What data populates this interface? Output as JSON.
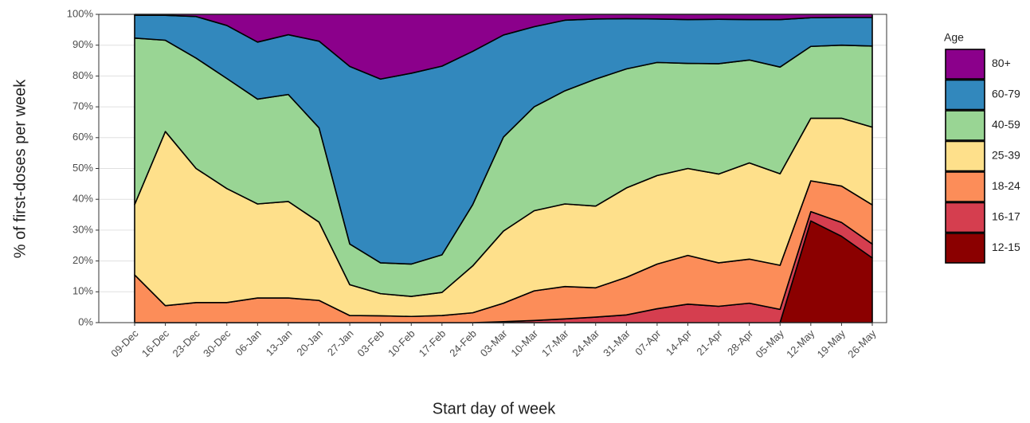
{
  "chart_data": {
    "type": "stacked_area",
    "x_label": "Start day of week",
    "y_label": "% of first-doses per week",
    "legend_title": "Age",
    "categories": [
      "09-Dec",
      "16-Dec",
      "23-Dec",
      "30-Dec",
      "06-Jan",
      "13-Jan",
      "20-Jan",
      "27-Jan",
      "03-Feb",
      "10-Feb",
      "17-Feb",
      "24-Feb",
      "03-Mar",
      "10-Mar",
      "17-Mar",
      "24-Mar",
      "31-Mar",
      "07-Apr",
      "14-Apr",
      "21-Apr",
      "28-Apr",
      "05-May",
      "12-May",
      "19-May",
      "26-May"
    ],
    "ylim": [
      0,
      100
    ],
    "yticks": [
      {
        "value": 0,
        "label": "0%"
      },
      {
        "value": 10,
        "label": "10%"
      },
      {
        "value": 20,
        "label": "20%"
      },
      {
        "value": 30,
        "label": "30%"
      },
      {
        "value": 40,
        "label": "40%"
      },
      {
        "value": 50,
        "label": "50%"
      },
      {
        "value": 60,
        "label": "60%"
      },
      {
        "value": 70,
        "label": "70%"
      },
      {
        "value": 80,
        "label": "80%"
      },
      {
        "value": 90,
        "label": "90%"
      },
      {
        "value": 100,
        "label": "100%"
      }
    ],
    "grid": true,
    "series": [
      {
        "name": "80+",
        "color": "#8b008b",
        "values": [
          0.3,
          0.3,
          0.7,
          3.6,
          9,
          6.6,
          8.7,
          16.9,
          21,
          19.1,
          16.8,
          12,
          6.7,
          4,
          1.9,
          1.5,
          1.4,
          1.5,
          1.7,
          1.6,
          1.7,
          1.7,
          1.1,
          1,
          1
        ]
      },
      {
        "name": "60-79",
        "color": "#3288bd",
        "values": [
          7.4,
          8.1,
          13.5,
          17.2,
          18.5,
          19.4,
          28.1,
          57.6,
          59.6,
          61.9,
          61.2,
          49.7,
          33.1,
          26,
          22.9,
          19.5,
          16.3,
          14.1,
          14.2,
          14.4,
          13.1,
          15.4,
          9.3,
          9,
          9.3
        ]
      },
      {
        "name": "40-59",
        "color": "#99d594",
        "values": [
          54,
          29.6,
          35.8,
          35.7,
          34,
          34.7,
          30.6,
          13.2,
          10,
          10.5,
          12.2,
          19.9,
          30.5,
          33.7,
          36.7,
          41.2,
          38.6,
          36.7,
          34.1,
          35.8,
          33.4,
          34.6,
          23.3,
          23.7,
          26.3
        ]
      },
      {
        "name": "25-39",
        "color": "#fee08b",
        "values": [
          22.8,
          56.5,
          43.5,
          37,
          30.5,
          31.3,
          25.4,
          10,
          7.2,
          6.5,
          7.5,
          15.2,
          23.4,
          26,
          26.8,
          26.5,
          29,
          28.7,
          28.2,
          28.8,
          31.2,
          29.7,
          20.3,
          22,
          25.2
        ]
      },
      {
        "name": "18-24",
        "color": "#fc8d59",
        "values": [
          15.5,
          5.5,
          6.5,
          6.5,
          8,
          8,
          7.2,
          2.3,
          2.2,
          2,
          2.3,
          3.2,
          6,
          9.6,
          10.5,
          9.5,
          12.2,
          14.5,
          15.8,
          14.1,
          14.3,
          14.3,
          10,
          11.8,
          12.7
        ]
      },
      {
        "name": "16-17",
        "color": "#d53e4f",
        "values": [
          0,
          0,
          0,
          0,
          0,
          0,
          0,
          0,
          0,
          0,
          0,
          0,
          0.3,
          0.7,
          1.2,
          1.8,
          2.5,
          4.5,
          6,
          5.3,
          6.3,
          4.3,
          3,
          4.5,
          4.5
        ]
      },
      {
        "name": "12-15",
        "color": "#8b0000",
        "values": [
          0,
          0,
          0,
          0,
          0,
          0,
          0,
          0,
          0,
          0,
          0,
          0,
          0,
          0,
          0,
          0,
          0,
          0,
          0,
          0,
          0,
          0,
          33,
          28,
          21
        ]
      }
    ]
  }
}
